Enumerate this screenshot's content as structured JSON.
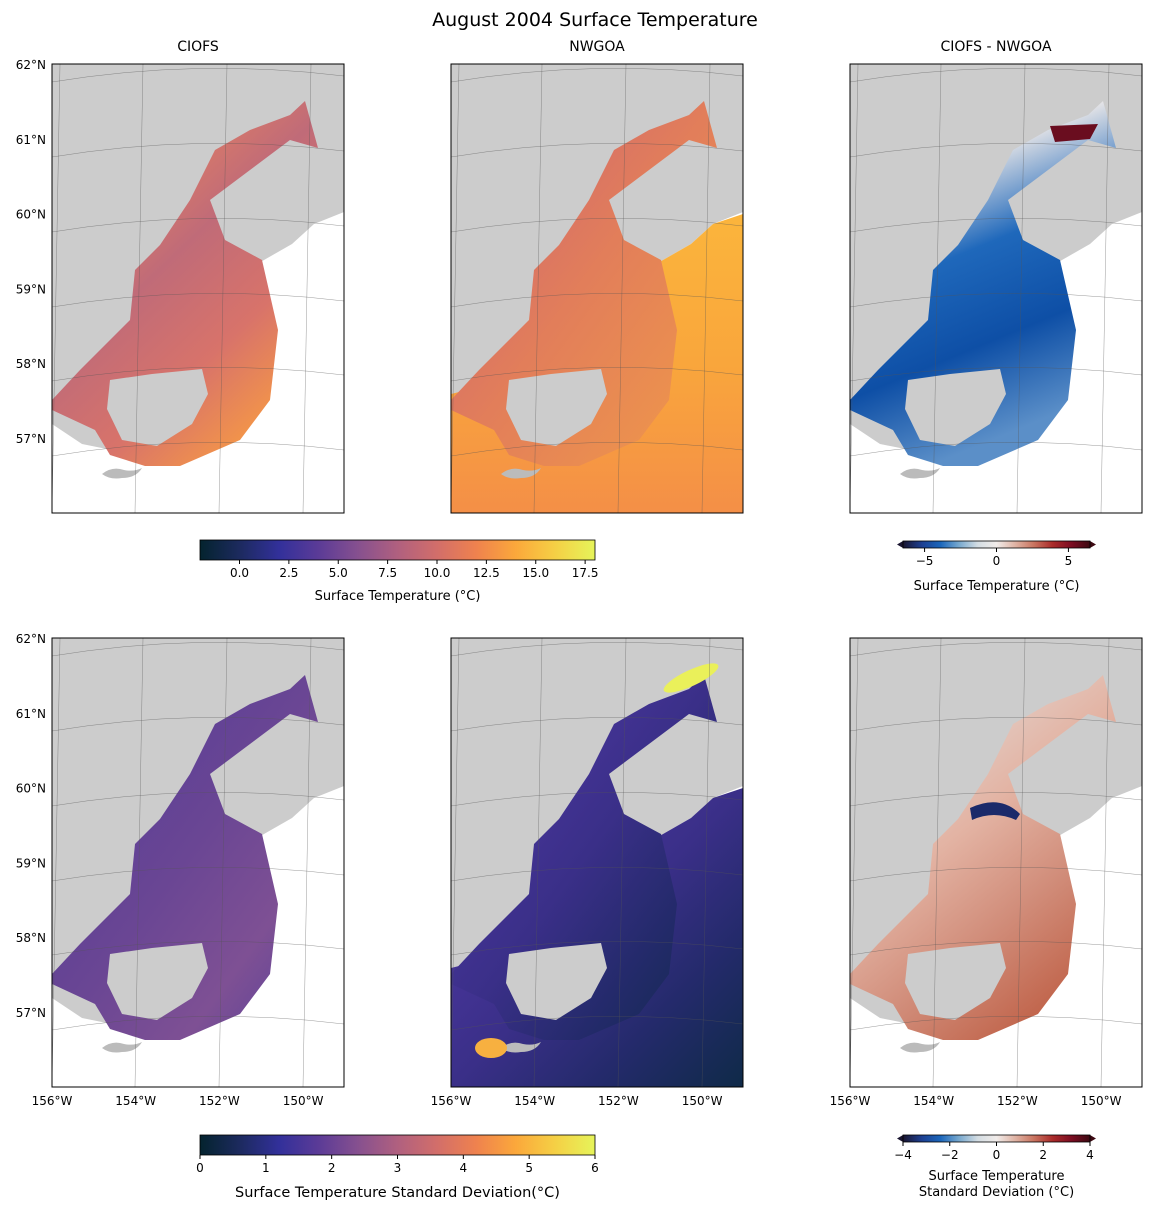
{
  "chart_data": {
    "type": "heatmap",
    "title": "August 2004 Surface Temperature",
    "lat_ticks": [
      "62°N",
      "61°N",
      "60°N",
      "59°N",
      "58°N",
      "57°N"
    ],
    "lon_ticks": [
      "156°W",
      "154°W",
      "152°W",
      "150°W"
    ],
    "extent": {
      "lon": [
        -156,
        -149
      ],
      "lat": [
        56,
        62
      ]
    },
    "panels": [
      {
        "title": "CIOFS",
        "variable": "mean",
        "model": "CIOFS",
        "colormap": "thermal"
      },
      {
        "title": "NWGOA",
        "variable": "mean",
        "model": "NWGOA",
        "colormap": "thermal"
      },
      {
        "title": "CIOFS - NWGOA",
        "variable": "mean difference",
        "colormap": "balance"
      },
      {
        "title": "",
        "variable": "std",
        "model": "CIOFS",
        "colormap": "thermal"
      },
      {
        "title": "",
        "variable": "std",
        "model": "NWGOA",
        "colormap": "thermal"
      },
      {
        "title": "",
        "variable": "std difference",
        "colormap": "balance"
      }
    ],
    "colorbars": [
      {
        "label": "Surface Temperature (°C)",
        "range": [
          -2,
          18
        ],
        "ticks": [
          "0.0",
          "2.5",
          "5.0",
          "7.5",
          "10.0",
          "12.5",
          "15.0",
          "17.5"
        ],
        "tick_values": [
          0,
          2.5,
          5,
          7.5,
          10,
          12.5,
          15,
          17.5
        ],
        "colormap": "thermal",
        "extend": "neither"
      },
      {
        "label": "Surface Temperature (°C)",
        "range": [
          -6.5,
          6.5
        ],
        "ticks": [
          "−5",
          "0",
          "5"
        ],
        "tick_values": [
          -5,
          0,
          5
        ],
        "colormap": "balance",
        "extend": "both"
      },
      {
        "label": "Surface Temperature Standard Deviation(°C)",
        "range": [
          0,
          6
        ],
        "ticks": [
          "0",
          "1",
          "2",
          "3",
          "4",
          "5",
          "6"
        ],
        "tick_values": [
          0,
          1,
          2,
          3,
          4,
          5,
          6
        ],
        "colormap": "thermal",
        "extend": "neither"
      },
      {
        "label": "Surface Temperature",
        "label2": "Standard Deviation (°C)",
        "range": [
          -4,
          4
        ],
        "ticks": [
          "−4",
          "−2",
          "0",
          "2",
          "4"
        ],
        "tick_values": [
          -4,
          -2,
          0,
          2,
          4
        ],
        "colormap": "balance",
        "extend": "both"
      }
    ],
    "colormaps": {
      "thermal": [
        "#04232e",
        "#1c2a5e",
        "#32309a",
        "#5b3b97",
        "#86508f",
        "#b0607f",
        "#d26e6a",
        "#ef824e",
        "#fba83b",
        "#f5d045",
        "#e6f45a"
      ],
      "balance": [
        "#1a1530",
        "#1d3f91",
        "#1b66bb",
        "#78a9cf",
        "#d4dde3",
        "#f1ecea",
        "#dfb3a4",
        "#c97460",
        "#aa2b2a",
        "#7c0d22",
        "#3c0912"
      ]
    },
    "colors": {
      "land": "#cccccc",
      "ocean": "#ffffff",
      "grid": "#555555"
    }
  }
}
